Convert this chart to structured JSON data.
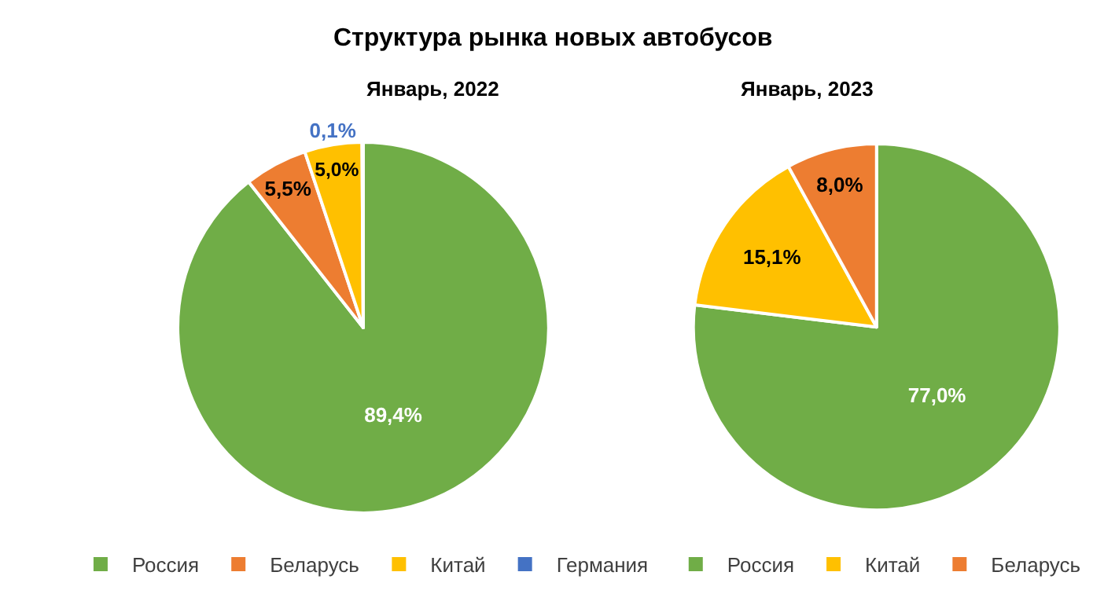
{
  "chart_data": [
    {
      "type": "pie",
      "title": "Структура рынка новых автобусов",
      "subtitle": "Январь, 2022",
      "categories": [
        "Россия",
        "Беларусь",
        "Китай",
        "Германия"
      ],
      "values": [
        89.4,
        5.5,
        5.0,
        0.1
      ],
      "value_labels": [
        "89,4%",
        "5,5%",
        "5,0%",
        "0,1%"
      ],
      "colors": [
        "#70ad47",
        "#ed7d31",
        "#ffc000",
        "#4472c4"
      ],
      "legend": "bottom"
    },
    {
      "type": "pie",
      "subtitle": "Январь, 2023",
      "categories": [
        "Россия",
        "Китай",
        "Беларусь"
      ],
      "values": [
        77.0,
        15.1,
        8.0
      ],
      "value_labels": [
        "77,0%",
        "15,1%",
        "8,0%"
      ],
      "colors": [
        "#70ad47",
        "#ffc000",
        "#ed7d31"
      ],
      "legend": "bottom"
    }
  ]
}
